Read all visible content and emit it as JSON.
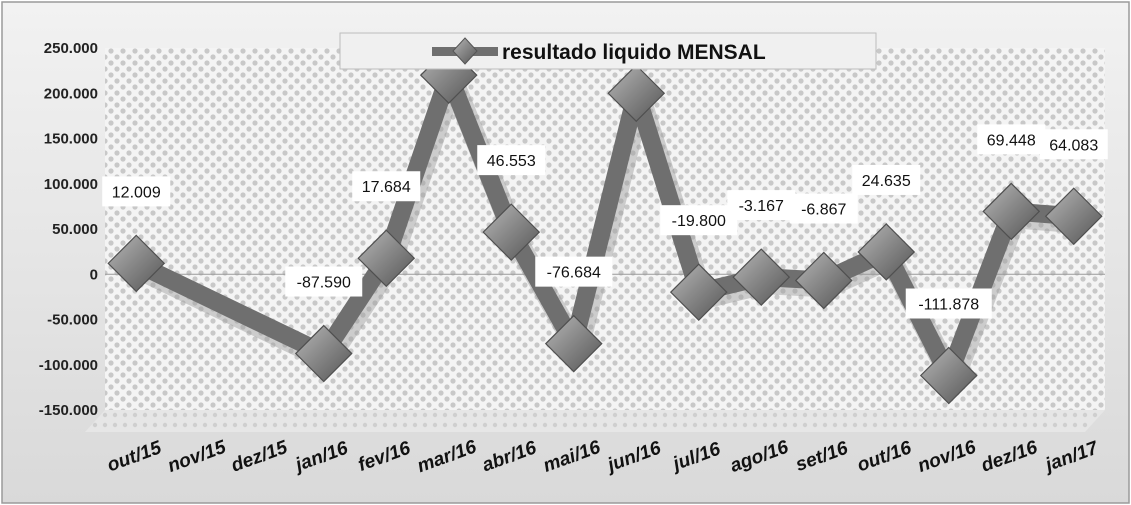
{
  "chart_data": {
    "type": "line",
    "legend": {
      "position": "top-center"
    },
    "categories": [
      "out/15",
      "nov/15",
      "dez/15",
      "jan/16",
      "fev/16",
      "mar/16",
      "abr/16",
      "mai/16",
      "jun/16",
      "jul/16",
      "ago/16",
      "set/16",
      "out/16",
      "nov/16",
      "dez/16",
      "jan/17"
    ],
    "series": [
      {
        "name": "resultado liquido MENSAL",
        "color": "#6f6f6f",
        "values": [
          12009,
          null,
          null,
          -87590,
          17684,
          220000,
          46553,
          -76684,
          200000,
          -19800,
          -3167,
          -6867,
          24635,
          -111878,
          69448,
          64083
        ]
      }
    ],
    "data_labels": [
      {
        "index": 0,
        "text": "12.009"
      },
      {
        "index": 3,
        "text": "-87.590"
      },
      {
        "index": 4,
        "text": "17.684"
      },
      {
        "index": 6,
        "text": "46.553"
      },
      {
        "index": 7,
        "text": "-76.684"
      },
      {
        "index": 9,
        "text": "-19.800"
      },
      {
        "index": 10,
        "text": "-3.167"
      },
      {
        "index": 11,
        "text": "-6.867"
      },
      {
        "index": 12,
        "text": "24.635"
      },
      {
        "index": 13,
        "text": "-111.878"
      },
      {
        "index": 14,
        "text": "69.448"
      },
      {
        "index": 15,
        "text": "64.083"
      }
    ],
    "y_ticks": [
      {
        "value": 250000,
        "label": "250.000"
      },
      {
        "value": 200000,
        "label": "200.000"
      },
      {
        "value": 150000,
        "label": "150.000"
      },
      {
        "value": 100000,
        "label": "100.000"
      },
      {
        "value": 50000,
        "label": "50.000"
      },
      {
        "value": 0,
        "label": "0"
      },
      {
        "value": -50000,
        "label": "-50.000"
      },
      {
        "value": -100000,
        "label": "-100.000"
      },
      {
        "value": -150000,
        "label": "-150.000"
      }
    ],
    "ylim": [
      -150000,
      250000
    ],
    "grid": false
  }
}
